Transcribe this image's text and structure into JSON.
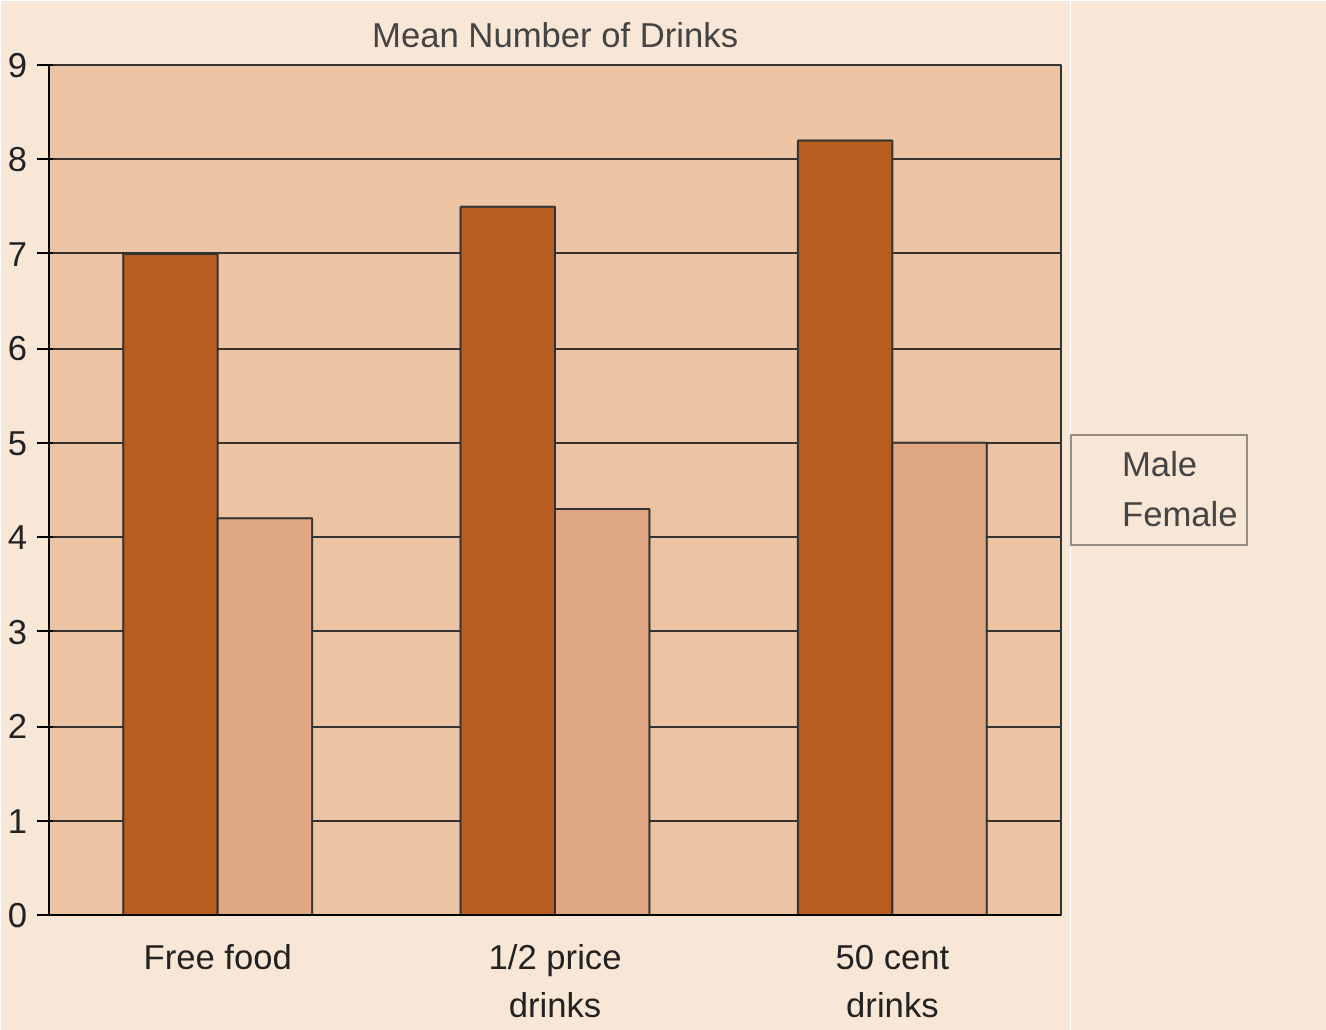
{
  "chart_data": {
    "type": "bar",
    "title": "Mean Number of Drinks",
    "categories": [
      "Free food",
      "1/2 price drinks",
      "50 cent drinks"
    ],
    "series": [
      {
        "name": "Male",
        "color": "#b85c20",
        "values": [
          7.0,
          7.5,
          8.2
        ]
      },
      {
        "name": "Female",
        "color": "#e0a882",
        "values": [
          4.2,
          4.3,
          5.0
        ]
      }
    ],
    "ylim": [
      0,
      9
    ],
    "yticks": [
      0,
      1,
      2,
      3,
      4,
      5,
      6,
      7,
      8,
      9
    ],
    "grid": "y",
    "legend": "right"
  }
}
